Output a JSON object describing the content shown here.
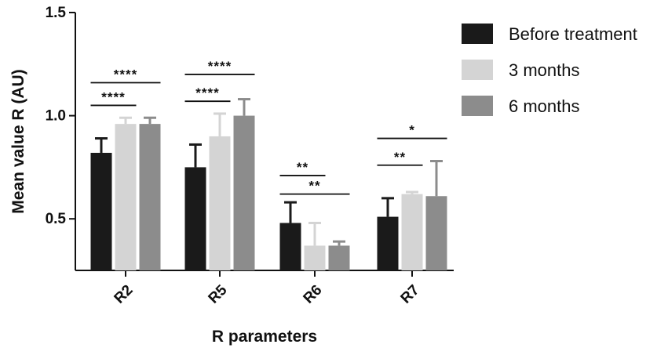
{
  "chart_data": {
    "type": "bar",
    "title": "",
    "xlabel": "R parameters",
    "ylabel": "Mean value R (AU)",
    "ylim": [
      0.25,
      1.5
    ],
    "yticks": [
      0.5,
      1.0,
      1.5
    ],
    "ytick_labels": [
      "0.5",
      "1.0",
      "1.5"
    ],
    "categories": [
      "R2",
      "R5",
      "R6",
      "R7"
    ],
    "series": [
      {
        "name": "Before treatment",
        "color": "#1a1a1a",
        "values": [
          0.82,
          0.75,
          0.48,
          0.51
        ],
        "errors": [
          0.07,
          0.11,
          0.1,
          0.09
        ]
      },
      {
        "name": "3 months",
        "color": "#d4d4d4",
        "values": [
          0.96,
          0.9,
          0.37,
          0.62
        ],
        "errors": [
          0.03,
          0.11,
          0.11,
          0.01
        ]
      },
      {
        "name": "6 months",
        "color": "#8c8c8c",
        "values": [
          0.96,
          1.0,
          0.37,
          0.61
        ],
        "errors": [
          0.03,
          0.08,
          0.02,
          0.17
        ]
      }
    ],
    "legend_position": "top-right",
    "grid": false,
    "significance": [
      {
        "category": "R2",
        "from_series": 0,
        "to_series": 1,
        "level": 1.05,
        "label": "****"
      },
      {
        "category": "R2",
        "from_series": 0,
        "to_series": 2,
        "level": 1.16,
        "label": "****"
      },
      {
        "category": "R5",
        "from_series": 0,
        "to_series": 1,
        "level": 1.07,
        "label": "****"
      },
      {
        "category": "R5",
        "from_series": 0,
        "to_series": 2,
        "level": 1.2,
        "label": "****"
      },
      {
        "category": "R6",
        "from_series": 0,
        "to_series": 1,
        "level": 0.71,
        "label": "**"
      },
      {
        "category": "R6",
        "from_series": 0,
        "to_series": 2,
        "level": 0.62,
        "label": "**"
      },
      {
        "category": "R7",
        "from_series": 0,
        "to_series": 1,
        "level": 0.76,
        "label": "**"
      },
      {
        "category": "R7",
        "from_series": 0,
        "to_series": 2,
        "level": 0.89,
        "label": "*"
      }
    ]
  }
}
